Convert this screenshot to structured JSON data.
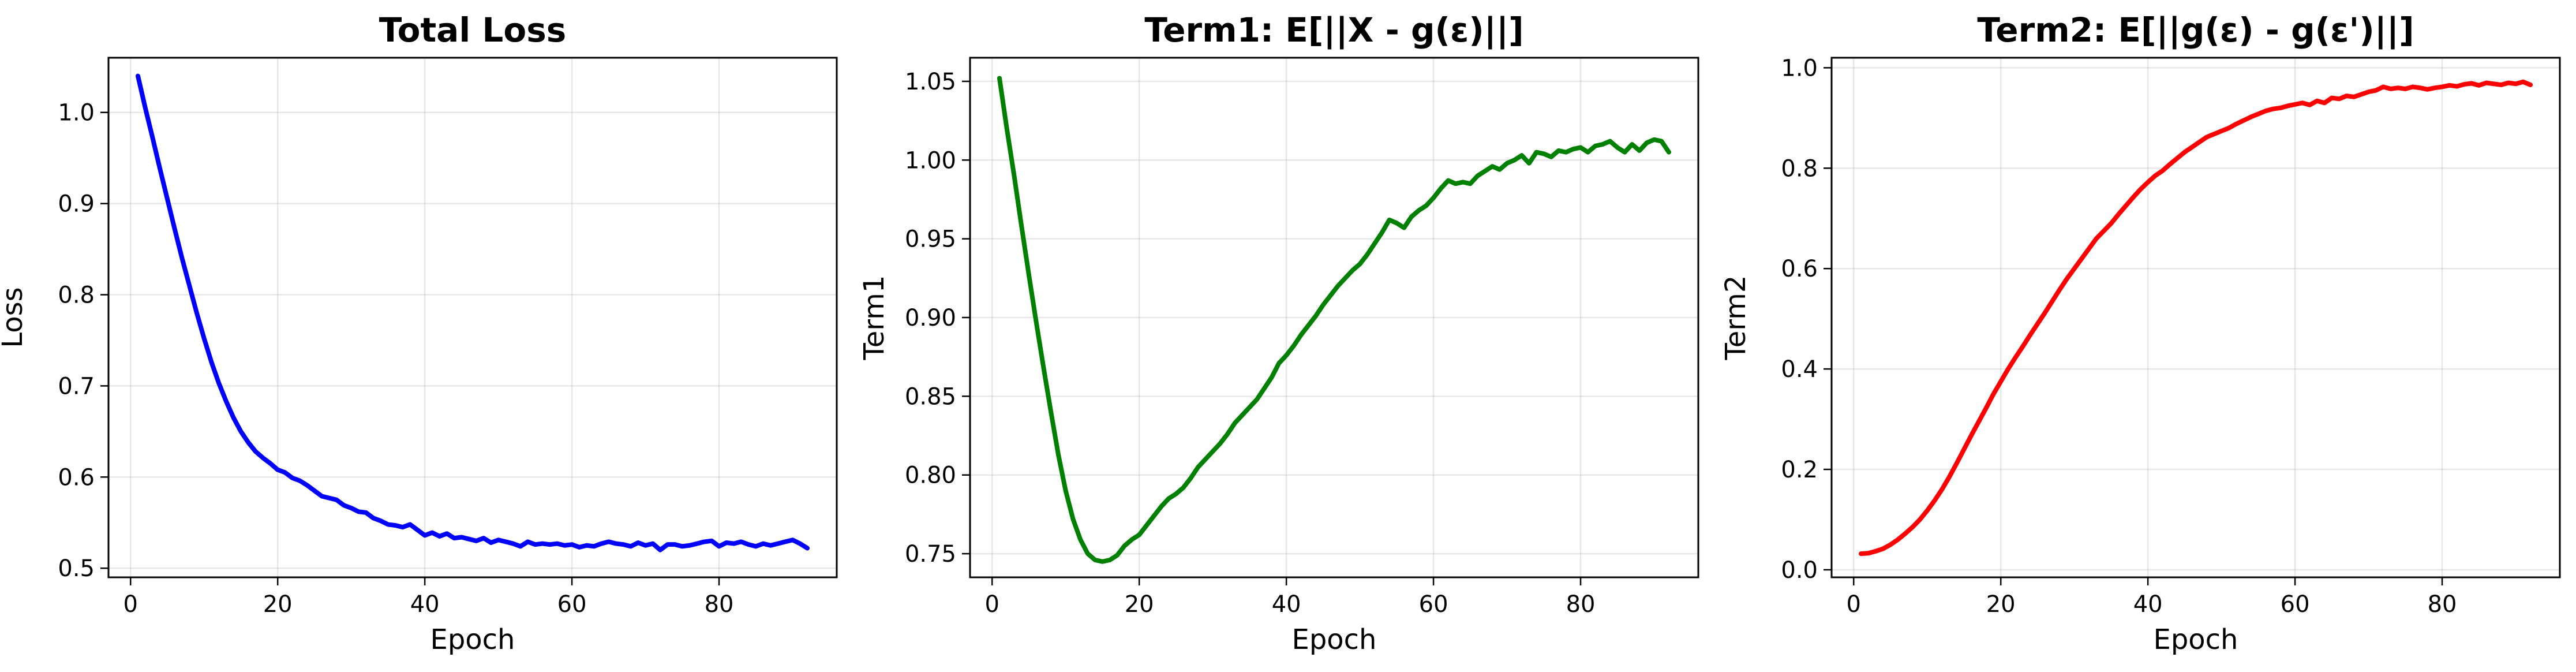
{
  "chart_data": [
    {
      "type": "line",
      "title": "Total Loss",
      "xlabel": "Epoch",
      "ylabel": "Loss",
      "xlim": [
        -3,
        96
      ],
      "ylim": [
        0.49,
        1.06
      ],
      "xticks": [
        0,
        20,
        40,
        60,
        80
      ],
      "yticks": [
        0.5,
        0.6,
        0.7,
        0.8,
        0.9,
        1.0
      ],
      "ytick_labels": [
        "0.5",
        "0.6",
        "0.7",
        "0.8",
        "0.9",
        "1.0"
      ],
      "grid": true,
      "color": "#0000ff",
      "series": [
        {
          "x": [
            1,
            2,
            3,
            4,
            5,
            6,
            7,
            8,
            9,
            10,
            11,
            12,
            13,
            14,
            15,
            16,
            17,
            18,
            19,
            20,
            21,
            22,
            23,
            24,
            25,
            26,
            27,
            28,
            29,
            30,
            31,
            32,
            33,
            34,
            35,
            36,
            37,
            38,
            39,
            40,
            41,
            42,
            43,
            44,
            45,
            46,
            47,
            48,
            49,
            50,
            51,
            52,
            53,
            54,
            55,
            56,
            57,
            58,
            59,
            60,
            61,
            62,
            63,
            64,
            65,
            66,
            67,
            68,
            69,
            70,
            71,
            72,
            73,
            74,
            75,
            76,
            77,
            78,
            79,
            80,
            81,
            82,
            83,
            84,
            85,
            86,
            87,
            88,
            89,
            90,
            91,
            92
          ],
          "values": [
            1.04,
            1.005,
            0.972,
            0.938,
            0.905,
            0.872,
            0.84,
            0.81,
            0.78,
            0.752,
            0.726,
            0.703,
            0.683,
            0.665,
            0.65,
            0.638,
            0.628,
            0.621,
            0.615,
            0.608,
            0.605,
            0.599,
            0.596,
            0.591,
            0.585,
            0.579,
            0.577,
            0.575,
            0.569,
            0.566,
            0.562,
            0.561,
            0.555,
            0.552,
            0.548,
            0.547,
            0.545,
            0.548,
            0.542,
            0.536,
            0.539,
            0.535,
            0.538,
            0.533,
            0.534,
            0.532,
            0.53,
            0.533,
            0.528,
            0.531,
            0.529,
            0.527,
            0.524,
            0.529,
            0.526,
            0.527,
            0.526,
            0.527,
            0.525,
            0.526,
            0.523,
            0.525,
            0.524,
            0.527,
            0.529,
            0.527,
            0.526,
            0.524,
            0.528,
            0.525,
            0.527,
            0.52,
            0.526,
            0.526,
            0.524,
            0.525,
            0.527,
            0.529,
            0.53,
            0.524,
            0.528,
            0.527,
            0.529,
            0.526,
            0.524,
            0.527,
            0.525,
            0.527,
            0.529,
            0.531,
            0.527,
            0.522
          ]
        }
      ]
    },
    {
      "type": "line",
      "title": "Term1: E[||X - g(ε)||]",
      "xlabel": "Epoch",
      "ylabel": "Term1",
      "xlim": [
        -3,
        96
      ],
      "ylim": [
        0.735,
        1.065
      ],
      "xticks": [
        0,
        20,
        40,
        60,
        80
      ],
      "yticks": [
        0.75,
        0.8,
        0.85,
        0.9,
        0.95,
        1.0,
        1.05
      ],
      "ytick_labels": [
        "0.75",
        "0.80",
        "0.85",
        "0.90",
        "0.95",
        "1.00",
        "1.05"
      ],
      "grid": true,
      "color": "#008000",
      "series": [
        {
          "x": [
            1,
            2,
            3,
            4,
            5,
            6,
            7,
            8,
            9,
            10,
            11,
            12,
            13,
            14,
            15,
            16,
            17,
            18,
            19,
            20,
            21,
            22,
            23,
            24,
            25,
            26,
            27,
            28,
            29,
            30,
            31,
            32,
            33,
            34,
            35,
            36,
            37,
            38,
            39,
            40,
            41,
            42,
            43,
            44,
            45,
            46,
            47,
            48,
            49,
            50,
            51,
            52,
            53,
            54,
            55,
            56,
            57,
            58,
            59,
            60,
            61,
            62,
            63,
            64,
            65,
            66,
            67,
            68,
            69,
            70,
            71,
            72,
            73,
            74,
            75,
            76,
            77,
            78,
            79,
            80,
            81,
            82,
            83,
            84,
            85,
            86,
            87,
            88,
            89,
            90,
            91,
            92
          ],
          "values": [
            1.052,
            1.02,
            0.99,
            0.958,
            0.927,
            0.897,
            0.868,
            0.84,
            0.813,
            0.79,
            0.772,
            0.759,
            0.75,
            0.746,
            0.745,
            0.746,
            0.749,
            0.755,
            0.759,
            0.762,
            0.768,
            0.774,
            0.78,
            0.785,
            0.788,
            0.792,
            0.798,
            0.805,
            0.81,
            0.815,
            0.82,
            0.826,
            0.833,
            0.838,
            0.843,
            0.848,
            0.855,
            0.862,
            0.871,
            0.876,
            0.882,
            0.889,
            0.895,
            0.901,
            0.908,
            0.914,
            0.92,
            0.925,
            0.93,
            0.934,
            0.94,
            0.947,
            0.954,
            0.962,
            0.96,
            0.957,
            0.964,
            0.968,
            0.971,
            0.976,
            0.982,
            0.987,
            0.985,
            0.986,
            0.985,
            0.99,
            0.993,
            0.996,
            0.994,
            0.998,
            1.0,
            1.003,
            0.998,
            1.005,
            1.004,
            1.002,
            1.006,
            1.005,
            1.007,
            1.008,
            1.005,
            1.009,
            1.01,
            1.012,
            1.008,
            1.005,
            1.01,
            1.006,
            1.011,
            1.013,
            1.012,
            1.005
          ]
        }
      ]
    },
    {
      "type": "line",
      "title": "Term2: E[||g(ε) - g(ε')||]",
      "xlabel": "Epoch",
      "ylabel": "Term2",
      "xlim": [
        -3,
        96
      ],
      "ylim": [
        -0.015,
        1.02
      ],
      "xticks": [
        0,
        20,
        40,
        60,
        80
      ],
      "yticks": [
        0.0,
        0.2,
        0.4,
        0.6,
        0.8,
        1.0
      ],
      "ytick_labels": [
        "0.0",
        "0.2",
        "0.4",
        "0.6",
        "0.8",
        "1.0"
      ],
      "grid": true,
      "color": "#ff0000",
      "series": [
        {
          "x": [
            1,
            2,
            3,
            4,
            5,
            6,
            7,
            8,
            9,
            10,
            11,
            12,
            13,
            14,
            15,
            16,
            17,
            18,
            19,
            20,
            21,
            22,
            23,
            24,
            25,
            26,
            27,
            28,
            29,
            30,
            31,
            32,
            33,
            34,
            35,
            36,
            37,
            38,
            39,
            40,
            41,
            42,
            43,
            44,
            45,
            46,
            47,
            48,
            49,
            50,
            51,
            52,
            53,
            54,
            55,
            56,
            57,
            58,
            59,
            60,
            61,
            62,
            63,
            64,
            65,
            66,
            67,
            68,
            69,
            70,
            71,
            72,
            73,
            74,
            75,
            76,
            77,
            78,
            79,
            80,
            81,
            82,
            83,
            84,
            85,
            86,
            87,
            88,
            89,
            90,
            91,
            92
          ],
          "values": [
            0.032,
            0.033,
            0.037,
            0.042,
            0.05,
            0.06,
            0.072,
            0.085,
            0.1,
            0.118,
            0.138,
            0.16,
            0.185,
            0.212,
            0.24,
            0.268,
            0.295,
            0.322,
            0.35,
            0.375,
            0.4,
            0.423,
            0.445,
            0.468,
            0.49,
            0.512,
            0.535,
            0.558,
            0.58,
            0.6,
            0.62,
            0.64,
            0.66,
            0.675,
            0.69,
            0.708,
            0.725,
            0.742,
            0.758,
            0.772,
            0.785,
            0.795,
            0.808,
            0.82,
            0.832,
            0.842,
            0.852,
            0.862,
            0.868,
            0.874,
            0.88,
            0.888,
            0.895,
            0.902,
            0.908,
            0.914,
            0.918,
            0.92,
            0.924,
            0.927,
            0.93,
            0.926,
            0.934,
            0.93,
            0.94,
            0.938,
            0.944,
            0.942,
            0.947,
            0.952,
            0.955,
            0.962,
            0.958,
            0.96,
            0.958,
            0.962,
            0.96,
            0.957,
            0.96,
            0.962,
            0.965,
            0.963,
            0.967,
            0.969,
            0.965,
            0.97,
            0.968,
            0.966,
            0.97,
            0.968,
            0.972,
            0.966
          ]
        }
      ]
    }
  ]
}
